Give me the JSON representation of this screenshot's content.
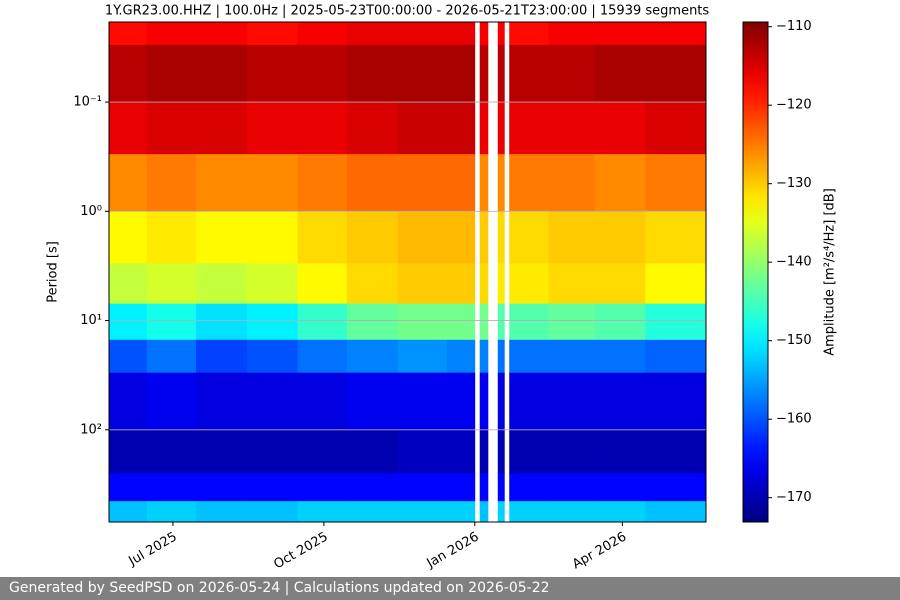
{
  "chart_data": {
    "type": "spectrogram",
    "title": "1Y.GR23.00.HHZ | 100.0Hz | 2025-05-23T00:00:00 - 2026-05-21T23:00:00 | 15939 segments",
    "y_label": "Period [s]",
    "colorbar_label": "Amplitude [m²/s⁴/Hz] [dB]",
    "footer": "Generated by SeedPSD on 2026-05-24 | Calculations updated on 2026-05-22",
    "colormap": "jet",
    "y_log": true,
    "y_inverted": true,
    "grid": true,
    "xlim": [
      "2025-05-23T00:00:00",
      "2026-05-21T23:00:00"
    ],
    "xticks": [
      {
        "value": "2025-07-01",
        "label": "Jul 2025"
      },
      {
        "value": "2025-10-01",
        "label": "Oct 2025"
      },
      {
        "value": "2026-01-01",
        "label": "Jan 2026"
      },
      {
        "value": "2026-04-01",
        "label": "Apr 2026"
      }
    ],
    "ylim": [
      0.0185,
      698
    ],
    "yticks": [
      {
        "value": 0.1,
        "label": "10⁻¹"
      },
      {
        "value": 1,
        "label": "10⁰"
      },
      {
        "value": 10,
        "label": "10¹"
      },
      {
        "value": 100,
        "label": "10²"
      }
    ],
    "clim": [
      -173.1,
      -109.4
    ],
    "cticks": [
      -110,
      -120,
      -130,
      -140,
      -150,
      -160,
      -170
    ],
    "x": [
      "2025-05-23",
      "2025-06-15",
      "2025-07-15",
      "2025-08-15",
      "2025-09-15",
      "2025-10-15",
      "2025-11-15",
      "2025-12-15",
      "2026-01-01",
      "2026-01-04",
      "2026-01-09",
      "2026-01-15",
      "2026-01-19",
      "2026-01-22",
      "2026-02-15",
      "2026-03-15",
      "2026-04-15",
      "2026-05-22"
    ],
    "periods": [
      0.0185,
      0.03,
      0.1,
      0.3,
      1,
      3,
      7,
      15,
      30,
      100,
      250,
      450,
      698
    ],
    "z": [
      [
        -118,
        -117,
        -117,
        -118,
        -117,
        -116,
        -116,
        -116,
        null,
        -117,
        null,
        -117,
        null,
        -118,
        -117,
        -117,
        -117
      ],
      [
        -113,
        -112,
        -112,
        -113,
        -113,
        -112,
        -112,
        -112,
        null,
        -113,
        null,
        -113,
        null,
        -113,
        -113,
        -112,
        -112
      ],
      [
        -116,
        -115,
        -115,
        -116,
        -116,
        -115,
        -114,
        -114,
        null,
        -116,
        null,
        -116,
        null,
        -116,
        -116,
        -116,
        -115
      ],
      [
        -126,
        -125,
        -126,
        -126,
        -125,
        -124,
        -124,
        -124,
        null,
        -126,
        null,
        -126,
        null,
        -125,
        -125,
        -126,
        -125
      ],
      [
        -133,
        -132,
        -133,
        -133,
        -131,
        -130,
        -129,
        -129,
        null,
        -130,
        null,
        -131,
        null,
        -131,
        -130,
        -130,
        -131
      ],
      [
        -137,
        -136,
        -137,
        -136,
        -133,
        -131,
        -130,
        -130,
        null,
        -131,
        null,
        -132,
        null,
        -132,
        -131,
        -131,
        -133
      ],
      [
        -150,
        -148,
        -151,
        -150,
        -146,
        -143,
        -142,
        -142,
        null,
        -142,
        null,
        -144,
        null,
        -144,
        -143,
        -144,
        -147
      ],
      [
        -160,
        -158,
        -161,
        -160,
        -158,
        -157,
        -156,
        -157,
        null,
        -157,
        null,
        -158,
        null,
        -158,
        -158,
        -158,
        -159
      ],
      [
        -167,
        -166,
        -167,
        -167,
        -167,
        -166,
        -166,
        -166,
        null,
        -166,
        null,
        -167,
        null,
        -167,
        -167,
        -167,
        -167
      ],
      [
        -170,
        -170,
        -170,
        -170,
        -170,
        -170,
        -169,
        -169,
        null,
        -170,
        null,
        -170,
        null,
        -170,
        -170,
        -170,
        -170
      ],
      [
        -165,
        -165,
        -165,
        -165,
        -165,
        -165,
        -165,
        -165,
        null,
        -165,
        null,
        -165,
        null,
        -165,
        -165,
        -165,
        -165
      ],
      [
        -153,
        -152,
        -153,
        -153,
        -152,
        -152,
        -152,
        -152,
        null,
        -153,
        null,
        -152,
        null,
        -152,
        -152,
        -152,
        -153
      ]
    ]
  }
}
